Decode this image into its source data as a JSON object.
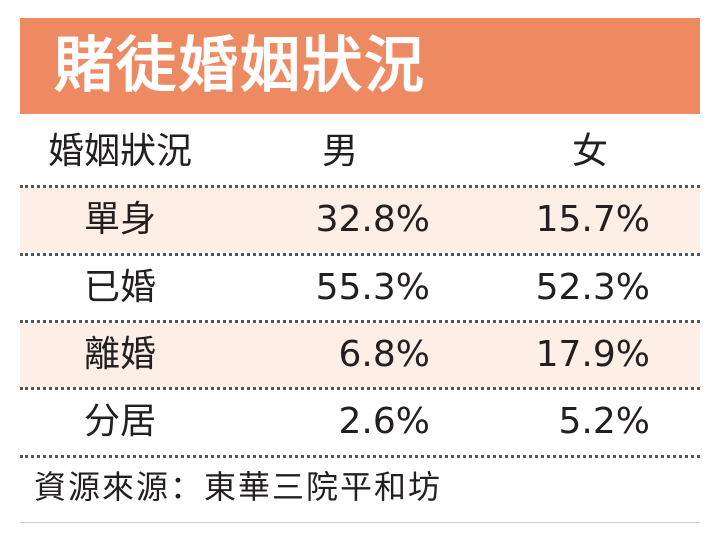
{
  "chart_data": {
    "type": "table",
    "title": "賭徒婚姻狀況",
    "columns": [
      "婚姻狀況",
      "男",
      "女"
    ],
    "rows": [
      {
        "status": "單身",
        "male": "32.8%",
        "female": "15.7%"
      },
      {
        "status": "已婚",
        "male": "55.3%",
        "female": "52.3%"
      },
      {
        "status": "離婚",
        "male": "6.8%",
        "female": "17.9%"
      },
      {
        "status": "分居",
        "male": "2.6%",
        "female": "5.2%"
      }
    ],
    "source": "資源來源：東華三院平和坊"
  },
  "colors": {
    "title_background": "#ee8a62",
    "title_text": "#ffffff",
    "shaded_row": "#fdeee6",
    "text": "#231f20"
  }
}
